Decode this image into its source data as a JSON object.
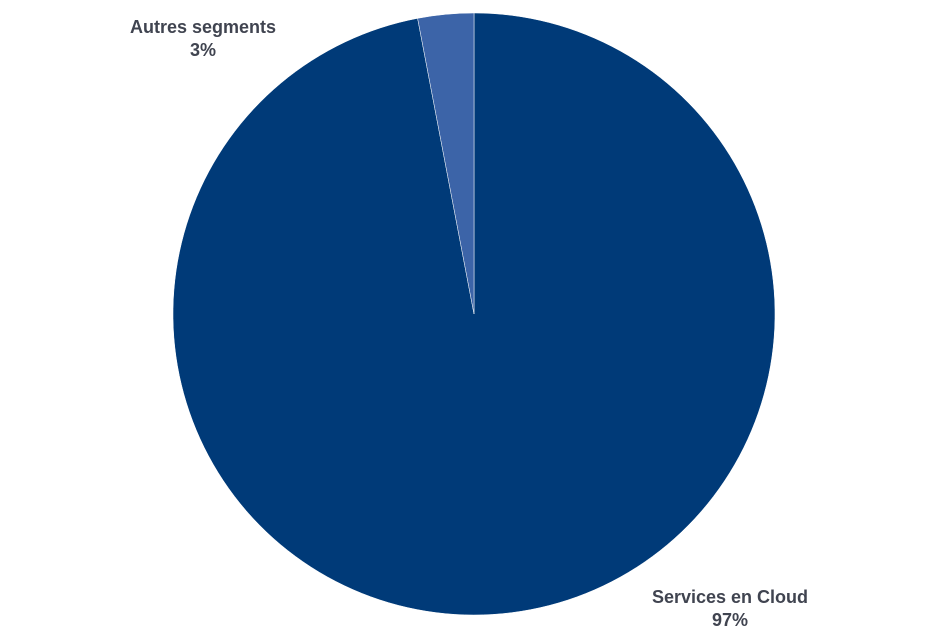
{
  "chart_data": {
    "type": "pie",
    "slices": [
      {
        "label": "Services en Cloud",
        "percent_label": "97%",
        "value": 97,
        "color": "#003a78"
      },
      {
        "label": "Autres segments",
        "percent_label": "3%",
        "value": 3,
        "color": "#3c64a8"
      }
    ],
    "start_angle": "12 o'clock",
    "direction": "clockwise",
    "legend": "none",
    "labels": "outside, bold, category name above percent"
  }
}
